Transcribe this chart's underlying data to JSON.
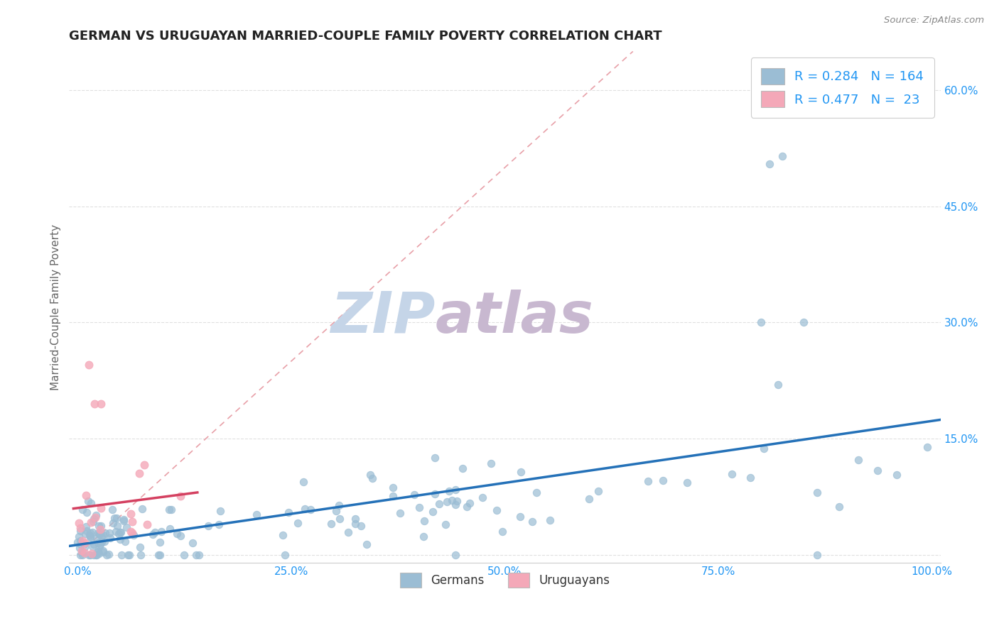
{
  "title": "GERMAN VS URUGUAYAN MARRIED-COUPLE FAMILY POVERTY CORRELATION CHART",
  "source": "Source: ZipAtlas.com",
  "ylabel": "Married-Couple Family Poverty",
  "xlim": [
    -0.01,
    1.01
  ],
  "ylim": [
    -0.01,
    0.65
  ],
  "xticks": [
    0.0,
    0.25,
    0.5,
    0.75,
    1.0
  ],
  "xticklabels": [
    "0.0%",
    "25.0%",
    "50.0%",
    "75.0%",
    "100.0%"
  ],
  "yticks": [
    0.0,
    0.15,
    0.3,
    0.45,
    0.6
  ],
  "yticklabels": [
    "",
    "15.0%",
    "30.0%",
    "45.0%",
    "60.0%"
  ],
  "german_color": "#9bbdd4",
  "uruguayan_color": "#f4a8b8",
  "german_line_color": "#2471b8",
  "uruguayan_line_color": "#d44060",
  "ref_line_color": "#e8a0a8",
  "background_color": "#ffffff",
  "watermark_zip_color": "#c5d5e8",
  "watermark_atlas_color": "#c8b8d0",
  "legend_color": "#2196F3",
  "title_color": "#222222",
  "tick_color": "#2196F3",
  "ylabel_color": "#666666",
  "german_R": 0.284,
  "german_N": 164,
  "uruguayan_R": 0.477,
  "uruguayan_N": 23,
  "grid_color": "#e0e0e0",
  "marker_size": 55,
  "marker_lw": 0.8,
  "german_alpha": 0.7,
  "uruguayan_alpha": 0.8
}
